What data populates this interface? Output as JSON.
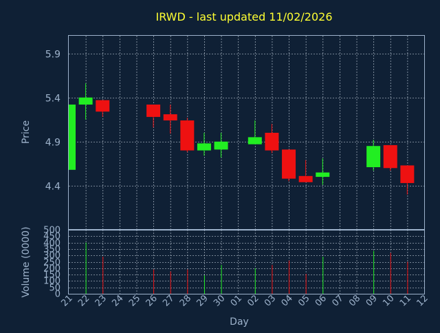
{
  "chart_data": {
    "type": "candlestick",
    "title": "IRWD - last updated 11/02/2026",
    "xlabel": "Day",
    "ylabel": "Price",
    "volume_label": "Volume (0000)",
    "colors": {
      "up": "#22ee22",
      "down": "#ee1111",
      "background": "#0f2035",
      "title": "#ffff33",
      "axis": "#9eb3cc"
    },
    "x_tick_labels": [
      "21",
      "22",
      "23",
      "24",
      "25",
      "26",
      "27",
      "28",
      "29",
      "30",
      "01",
      "02",
      "03",
      "04",
      "05",
      "06",
      "07",
      "08",
      "09",
      "10",
      "11",
      "12"
    ],
    "price_ticks": [
      "4.4",
      "4.9",
      "5.4",
      "5.9"
    ],
    "price_ylim": [
      3.9,
      6.1
    ],
    "volume_ticks": [
      "0",
      "50",
      "100",
      "150",
      "200",
      "250",
      "300",
      "350",
      "400",
      "450",
      "500"
    ],
    "volume_ylim": [
      0,
      500
    ],
    "grid": true,
    "candles": [
      {
        "day": "21",
        "open": 4.58,
        "high": 5.32,
        "low": 4.58,
        "close": 5.32,
        "volume": 0
      },
      {
        "day": "22",
        "open": 5.32,
        "high": 5.56,
        "low": 5.15,
        "close": 5.4,
        "volume": 400
      },
      {
        "day": "23",
        "open": 5.37,
        "high": 5.37,
        "low": 5.18,
        "close": 5.24,
        "volume": 290
      },
      {
        "day": "26",
        "open": 5.32,
        "high": 5.32,
        "low": 5.06,
        "close": 5.18,
        "volume": 190
      },
      {
        "day": "27",
        "open": 5.21,
        "high": 5.32,
        "low": 4.99,
        "close": 5.14,
        "volume": 175
      },
      {
        "day": "28",
        "open": 5.14,
        "high": 5.17,
        "low": 4.78,
        "close": 4.8,
        "volume": 190
      },
      {
        "day": "29",
        "open": 4.8,
        "high": 5.0,
        "low": 4.74,
        "close": 4.88,
        "volume": 145
      },
      {
        "day": "30",
        "open": 4.81,
        "high": 5.0,
        "low": 4.72,
        "close": 4.9,
        "volume": 225
      },
      {
        "day": "02",
        "open": 4.87,
        "high": 5.14,
        "low": 4.87,
        "close": 4.95,
        "volume": 200
      },
      {
        "day": "03",
        "open": 5.0,
        "high": 5.1,
        "low": 4.77,
        "close": 4.8,
        "volume": 225
      },
      {
        "day": "04",
        "open": 4.81,
        "high": 4.81,
        "low": 4.45,
        "close": 4.48,
        "volume": 260
      },
      {
        "day": "05",
        "open": 4.51,
        "high": 4.69,
        "low": 4.44,
        "close": 4.44,
        "volume": 155
      },
      {
        "day": "06",
        "open": 4.5,
        "high": 4.71,
        "low": 4.41,
        "close": 4.55,
        "volume": 290
      },
      {
        "day": "09",
        "open": 4.61,
        "high": 4.92,
        "low": 4.57,
        "close": 4.85,
        "volume": 335
      },
      {
        "day": "10",
        "open": 4.86,
        "high": 4.86,
        "low": 4.57,
        "close": 4.6,
        "volume": 320
      },
      {
        "day": "11",
        "open": 4.63,
        "high": 4.63,
        "low": 4.3,
        "close": 4.43,
        "volume": 250
      }
    ]
  }
}
